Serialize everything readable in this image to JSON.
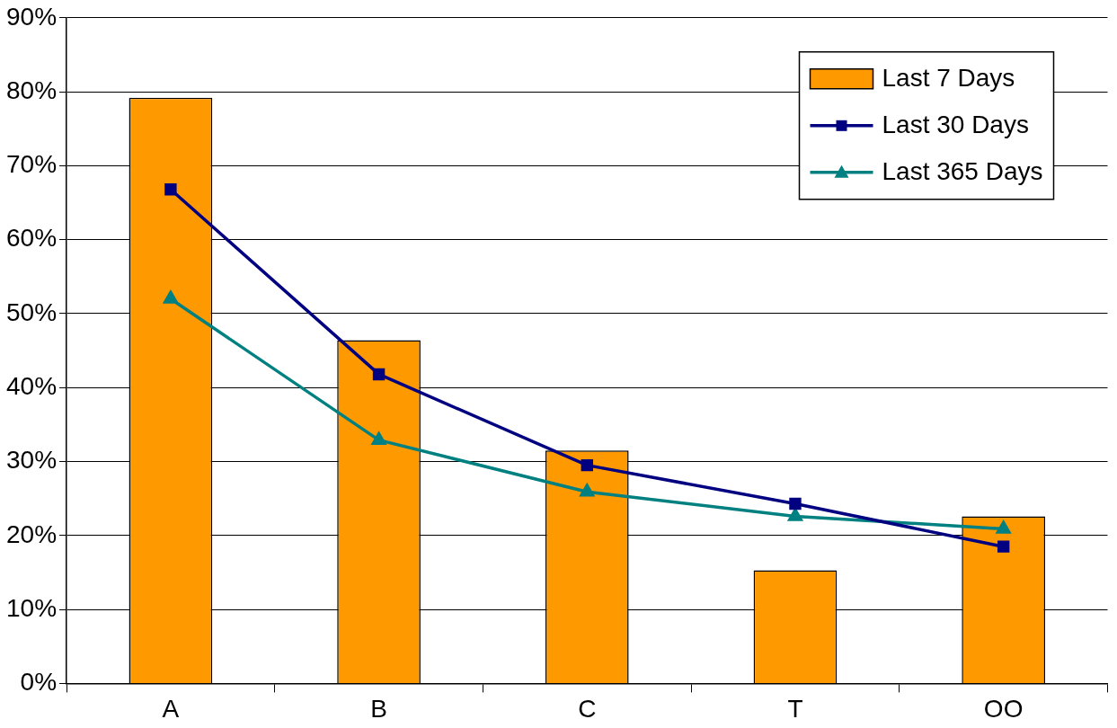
{
  "chart_data": {
    "type": "bar",
    "categories": [
      "A",
      "B",
      "C",
      "T",
      "OO"
    ],
    "series": [
      {
        "name": "Last 7 Days",
        "color": "#ff9900",
        "values": [
          79.2,
          46.4,
          31.5,
          15.3,
          22.6
        ]
      },
      {
        "name": "Last 30 Days",
        "type": "line",
        "color": "#000080",
        "marker": "square",
        "values": [
          66.8,
          41.8,
          29.5,
          24.3,
          18.5
        ]
      },
      {
        "name": "Last 365 Days",
        "type": "line",
        "color": "#008080",
        "marker": "triangle",
        "values": [
          52.0,
          32.9,
          25.9,
          22.6,
          20.9
        ]
      }
    ],
    "ylim": [
      0,
      90
    ],
    "yticks": [
      {
        "value": 0,
        "label": "0%"
      },
      {
        "value": 10,
        "label": "10%"
      },
      {
        "value": 20,
        "label": "20%"
      },
      {
        "value": 30,
        "label": "30%"
      },
      {
        "value": 40,
        "label": "40%"
      },
      {
        "value": 50,
        "label": "50%"
      },
      {
        "value": 60,
        "label": "60%"
      },
      {
        "value": 70,
        "label": "70%"
      },
      {
        "value": 80,
        "label": "80%"
      },
      {
        "value": 90,
        "label": "90%"
      }
    ],
    "grid": "y",
    "legend": "top right"
  }
}
